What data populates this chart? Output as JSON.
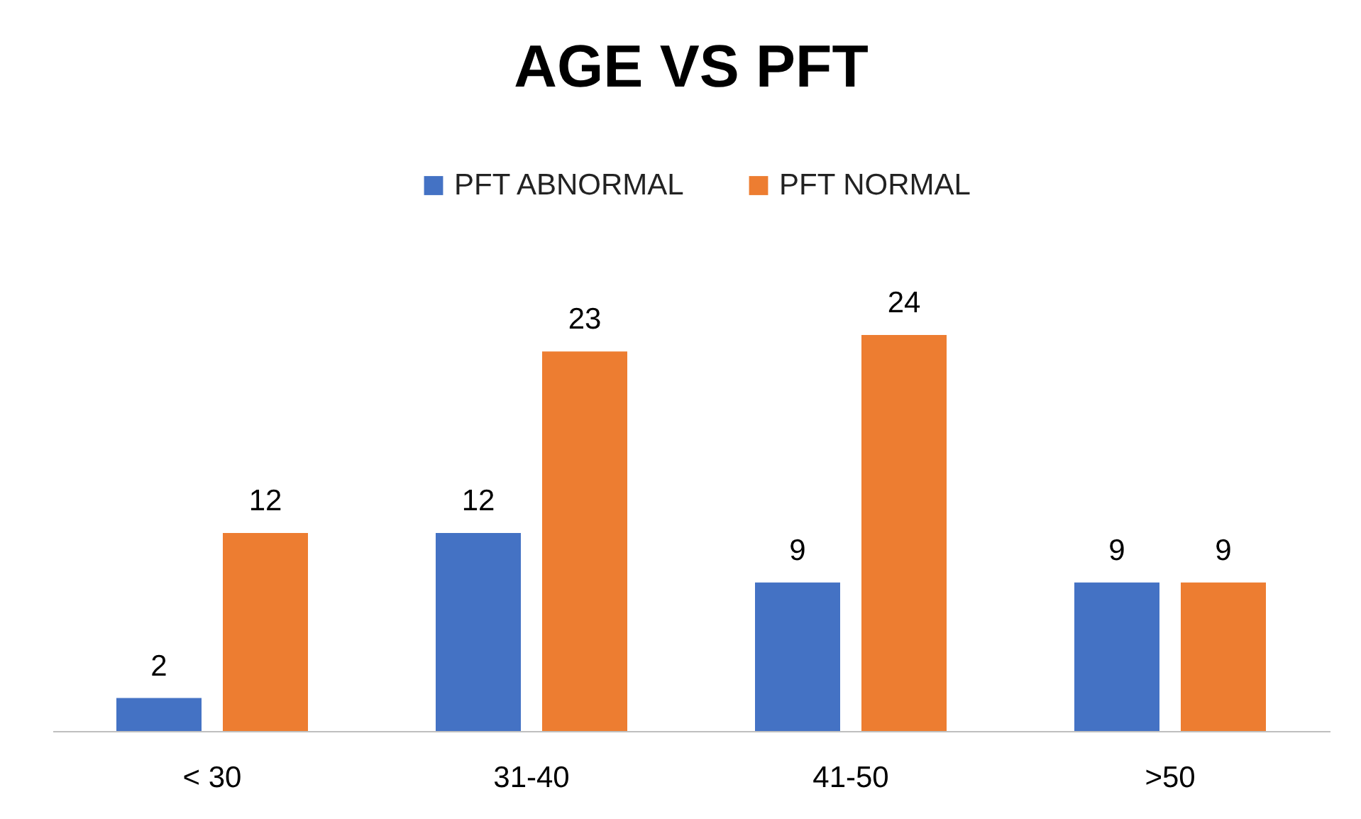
{
  "chart_data": {
    "type": "bar",
    "title": "AGE VS PFT",
    "categories": [
      "< 30",
      "31-40",
      "41-50",
      ">50"
    ],
    "series": [
      {
        "name": "PFT ABNORMAL",
        "color": "#4472c4",
        "values": [
          2,
          12,
          9,
          9
        ]
      },
      {
        "name": "PFT NORMAL",
        "color": "#ed7d31",
        "values": [
          12,
          23,
          24,
          9
        ]
      }
    ],
    "data_labels": true,
    "legend": "top"
  }
}
